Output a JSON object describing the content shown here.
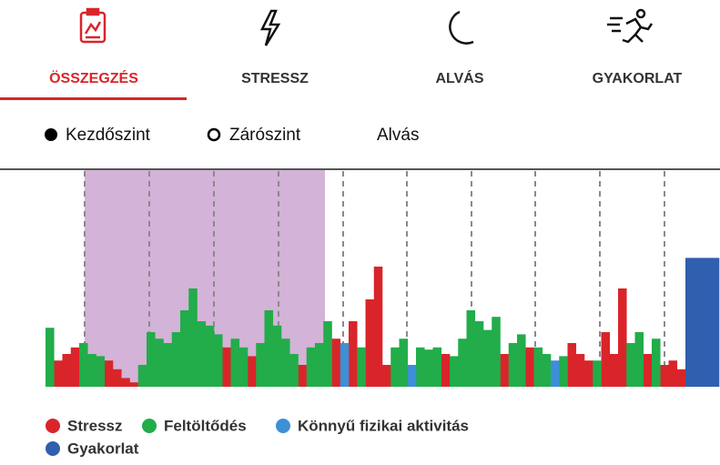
{
  "tabs": [
    "ÖSSZEGZÉS",
    "STRESSZ",
    "ALVÁS",
    "GYAKORLAT"
  ],
  "markers": [
    "Kezdőszint",
    "Zárószint",
    "Alvás"
  ],
  "chart_data": {
    "type": "bar",
    "series": [
      {
        "name": "Stressz",
        "color": "#d9252a",
        "values": [
          null,
          12,
          15,
          18,
          null,
          null,
          null,
          12,
          8,
          4,
          2,
          null,
          null,
          null,
          null,
          null,
          null,
          null,
          null,
          null,
          null,
          18,
          null,
          null,
          14,
          null,
          null,
          null,
          null,
          null,
          10,
          null,
          null,
          null,
          22,
          null,
          30,
          null,
          40,
          55,
          10,
          null,
          null,
          null,
          null,
          null,
          null,
          15,
          null,
          null,
          null,
          null,
          null,
          null,
          15,
          null,
          null,
          18,
          null,
          null,
          null,
          null,
          20,
          15,
          12,
          null,
          25,
          15,
          45,
          null,
          null,
          15,
          null,
          10,
          12,
          8,
          null,
          null,
          null,
          null
        ]
      },
      {
        "name": "Feltöltődés",
        "color": "#22ac4a",
        "values": [
          27,
          null,
          null,
          null,
          20,
          15,
          14,
          null,
          null,
          null,
          null,
          10,
          25,
          22,
          20,
          25,
          35,
          45,
          30,
          28,
          24,
          null,
          22,
          18,
          null,
          20,
          35,
          28,
          22,
          15,
          null,
          18,
          20,
          30,
          null,
          null,
          null,
          18,
          null,
          null,
          null,
          18,
          22,
          null,
          18,
          17,
          18,
          null,
          14,
          22,
          35,
          30,
          26,
          32,
          null,
          20,
          24,
          null,
          18,
          15,
          null,
          14,
          null,
          null,
          null,
          12,
          null,
          null,
          null,
          20,
          25,
          null,
          22,
          null,
          null,
          null,
          null,
          null,
          null,
          null
        ]
      },
      {
        "name": "Könnyű fizikai aktivitás",
        "color": "#3d8fd6",
        "values": [
          null,
          null,
          null,
          null,
          null,
          null,
          null,
          null,
          null,
          null,
          null,
          null,
          null,
          null,
          null,
          null,
          null,
          null,
          null,
          null,
          null,
          null,
          null,
          null,
          null,
          null,
          null,
          null,
          null,
          null,
          null,
          null,
          null,
          null,
          null,
          20,
          null,
          null,
          null,
          null,
          null,
          null,
          null,
          10,
          null,
          null,
          null,
          null,
          null,
          null,
          null,
          null,
          null,
          null,
          null,
          null,
          null,
          null,
          null,
          null,
          12,
          null,
          null,
          null,
          null,
          null,
          null,
          null,
          null,
          null,
          null,
          null,
          null,
          null,
          null,
          null,
          null,
          null,
          null,
          null
        ]
      },
      {
        "name": "Gyakorlat",
        "color": "#2f5fae",
        "values": [
          null,
          null,
          null,
          null,
          null,
          null,
          null,
          null,
          null,
          null,
          null,
          null,
          null,
          null,
          null,
          null,
          null,
          null,
          null,
          null,
          null,
          null,
          null,
          null,
          null,
          null,
          null,
          null,
          null,
          null,
          null,
          null,
          null,
          null,
          null,
          null,
          null,
          null,
          null,
          null,
          null,
          null,
          null,
          null,
          null,
          null,
          null,
          null,
          null,
          null,
          null,
          null,
          null,
          null,
          null,
          null,
          null,
          null,
          null,
          null,
          null,
          null,
          null,
          null,
          null,
          null,
          null,
          null,
          null,
          null,
          null,
          null,
          null,
          null,
          null,
          null,
          59,
          59,
          59,
          59
        ]
      }
    ]
  }
}
